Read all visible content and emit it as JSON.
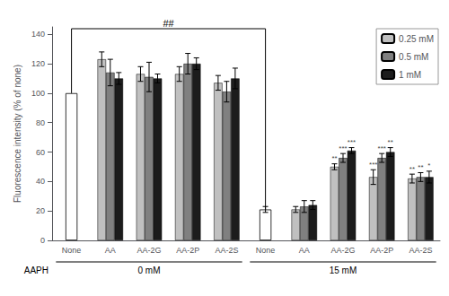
{
  "chart_data": {
    "type": "bar",
    "ylabel": "Fluorescence intensity (% of none)",
    "categories": [
      "None",
      "AA",
      "AA-2G",
      "AA-2P",
      "AA-2S",
      "None",
      "AA",
      "AA-2G",
      "AA-2P",
      "AA-2S"
    ],
    "series": [
      {
        "values": [
          100,
          null,
          null,
          null,
          null,
          21,
          null,
          null,
          null,
          null
        ],
        "errors": [
          0,
          null,
          null,
          null,
          null,
          2,
          null,
          null,
          null,
          null
        ],
        "color": "#ffffff"
      },
      {
        "name": "0.25 mM",
        "color": "#c0c0c0",
        "values": [
          null,
          123,
          113,
          113,
          107,
          null,
          21,
          50,
          43,
          42
        ],
        "errors": [
          null,
          5,
          5,
          5,
          5,
          null,
          2,
          2,
          5,
          3
        ],
        "stars": [
          null,
          null,
          null,
          null,
          null,
          null,
          null,
          "**",
          "***",
          "**"
        ]
      },
      {
        "name": "0.5 mM",
        "color": "#808080",
        "values": [
          null,
          114,
          111,
          120,
          101,
          null,
          23,
          56,
          56,
          43
        ],
        "errors": [
          null,
          9,
          10,
          7,
          7,
          null,
          4,
          3,
          3,
          3
        ],
        "stars": [
          null,
          null,
          null,
          null,
          null,
          null,
          null,
          "***",
          "***",
          "**"
        ]
      },
      {
        "name": "1 mM",
        "color": "#1c1c1c",
        "values": [
          null,
          110,
          110,
          120,
          110,
          null,
          24,
          61,
          60,
          43
        ],
        "errors": [
          null,
          4,
          3,
          4,
          7,
          null,
          3,
          2,
          3,
          4
        ],
        "stars": [
          null,
          null,
          null,
          null,
          null,
          null,
          null,
          "***",
          "**",
          "*"
        ]
      }
    ],
    "annotations": {
      "bracket": "##",
      "group_title": "AAPH",
      "groups": [
        "0 mM",
        "15 mM"
      ]
    },
    "ylim": [
      0,
      145
    ],
    "yticks": [
      0,
      20,
      40,
      60,
      80,
      100,
      120,
      140
    ],
    "grid": false,
    "legend": "upper right"
  }
}
